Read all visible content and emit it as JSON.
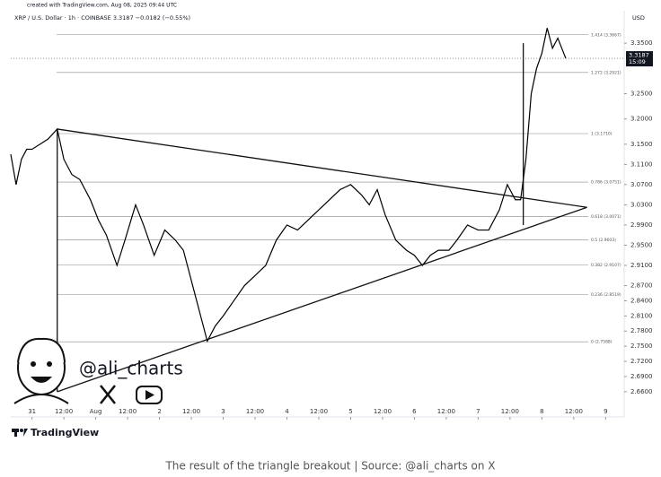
{
  "chart_data": {
    "type": "line",
    "credit": "created with TradingView.com, Aug 08, 2025 09:44 UTC",
    "title": "XRP / U.S. Dollar · 1h · COINBASE  3.3187  −0.0182 (−0.55%)",
    "currency": "USD",
    "last_price_label": "3.3187",
    "countdown": "15:09",
    "watermark": "@ali_charts",
    "logo": "TradingView",
    "caption": "The result of the triangle breakout | Source: @ali_charts on X",
    "ylim": [
      2.61,
      3.4
    ],
    "xlim": [
      -8,
      223
    ],
    "yticks": [
      {
        "value": 3.35,
        "label": "3.3500"
      },
      {
        "value": 3.25,
        "label": "3.2500"
      },
      {
        "value": 3.2,
        "label": "3.2000"
      },
      {
        "value": 3.15,
        "label": "3.1500"
      },
      {
        "value": 3.11,
        "label": "3.1100"
      },
      {
        "value": 3.07,
        "label": "3.0700"
      },
      {
        "value": 3.03,
        "label": "3.0300"
      },
      {
        "value": 2.99,
        "label": "2.9900"
      },
      {
        "value": 2.95,
        "label": "2.9500"
      },
      {
        "value": 2.91,
        "label": "2.9100"
      },
      {
        "value": 2.87,
        "label": "2.8700"
      },
      {
        "value": 2.84,
        "label": "2.8400"
      },
      {
        "value": 2.81,
        "label": "2.8100"
      },
      {
        "value": 2.78,
        "label": "2.7800"
      },
      {
        "value": 2.75,
        "label": "2.7500"
      },
      {
        "value": 2.72,
        "label": "2.7200"
      },
      {
        "value": 2.69,
        "label": "2.6900"
      },
      {
        "value": 2.66,
        "label": "2.6600"
      }
    ],
    "xticks": [
      {
        "value": 0,
        "label": "31"
      },
      {
        "value": 12,
        "label": "12:00"
      },
      {
        "value": 24,
        "label": "Aug"
      },
      {
        "value": 36,
        "label": "12:00"
      },
      {
        "value": 48,
        "label": "2"
      },
      {
        "value": 60,
        "label": "12:00"
      },
      {
        "value": 72,
        "label": "3"
      },
      {
        "value": 84,
        "label": "12:00"
      },
      {
        "value": 96,
        "label": "4"
      },
      {
        "value": 108,
        "label": "12:00"
      },
      {
        "value": 120,
        "label": "5"
      },
      {
        "value": 132,
        "label": "12:00"
      },
      {
        "value": 144,
        "label": "6"
      },
      {
        "value": 156,
        "label": "12:00"
      },
      {
        "value": 168,
        "label": "7"
      },
      {
        "value": 180,
        "label": "12:00"
      },
      {
        "value": 192,
        "label": "8"
      },
      {
        "value": 204,
        "label": "12:00"
      },
      {
        "value": 216,
        "label": "9"
      }
    ],
    "fib_levels": [
      {
        "value": 3.3667,
        "label": "1.414 (3.3667)"
      },
      {
        "value": 3.2921,
        "label": "1.272 (3.2921)"
      },
      {
        "value": 3.171,
        "label": "1 (3.1710)"
      },
      {
        "value": 3.0751,
        "label": "0.786 (3.0751)"
      },
      {
        "value": 3.0071,
        "label": "0.618 (3.0071)"
      },
      {
        "value": 2.9603,
        "label": "0.5 (2.9603)"
      },
      {
        "value": 2.9107,
        "label": "0.382 (2.9107)"
      },
      {
        "value": 2.8519,
        "label": "0.236 (2.8519)"
      },
      {
        "value": 2.7588,
        "label": "0 (2.7588)"
      }
    ],
    "trendlines": [
      {
        "x": [
          9.5,
          209
        ],
        "values": [
          3.18,
          3.025
        ]
      },
      {
        "x": [
          9.5,
          209
        ],
        "values": [
          2.66,
          3.025
        ]
      },
      {
        "x": [
          9.5,
          9.5
        ],
        "values": [
          3.18,
          2.66
        ]
      },
      {
        "x": [
          185,
          185
        ],
        "values": [
          2.99,
          3.35
        ]
      }
    ],
    "series": [
      {
        "name": "XRP / U.S. Dollar",
        "color": "#000000",
        "x": [
          -8,
          -6,
          -4,
          -2,
          0,
          3,
          6,
          9.5,
          12,
          15,
          18,
          22,
          25,
          28,
          32,
          35,
          39,
          42,
          46,
          50,
          54,
          57,
          61,
          64,
          66,
          69,
          72,
          76,
          80,
          84,
          88,
          92,
          96,
          100,
          104,
          108,
          112,
          116,
          120,
          124,
          127,
          130,
          133,
          137,
          141,
          144,
          147,
          150,
          153,
          157,
          160,
          164,
          168,
          172,
          176,
          179,
          182,
          184,
          186,
          188,
          190,
          192,
          194,
          196,
          198,
          201
        ],
        "values": [
          3.13,
          3.07,
          3.12,
          3.14,
          3.14,
          3.15,
          3.16,
          3.18,
          3.12,
          3.09,
          3.08,
          3.04,
          3.0,
          2.97,
          2.91,
          2.96,
          3.03,
          2.99,
          2.93,
          2.98,
          2.96,
          2.94,
          2.86,
          2.8,
          2.76,
          2.79,
          2.81,
          2.84,
          2.87,
          2.89,
          2.91,
          2.96,
          2.99,
          2.98,
          3.0,
          3.02,
          3.04,
          3.06,
          3.07,
          3.05,
          3.03,
          3.06,
          3.01,
          2.96,
          2.94,
          2.93,
          2.91,
          2.93,
          2.94,
          2.94,
          2.96,
          2.99,
          2.98,
          2.98,
          3.02,
          3.07,
          3.04,
          3.04,
          3.12,
          3.25,
          3.3,
          3.33,
          3.38,
          3.34,
          3.36,
          3.32
        ]
      }
    ]
  }
}
